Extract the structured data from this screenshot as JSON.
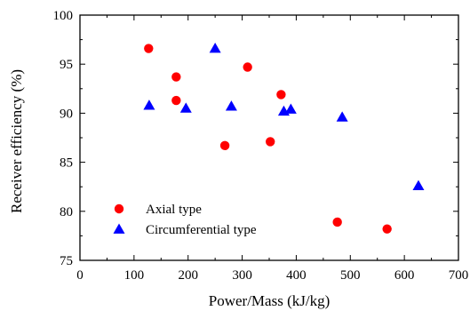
{
  "chart_data": {
    "type": "scatter",
    "title": "",
    "xlabel": "Power/Mass (kJ/kg)",
    "ylabel": "Receiver efficiency (%)",
    "xlim": [
      0,
      700
    ],
    "ylim": [
      75,
      100
    ],
    "xticks": [
      "0",
      "100",
      "200",
      "300",
      "400",
      "500",
      "600",
      "700"
    ],
    "yticks": [
      "75",
      "80",
      "85",
      "90",
      "95",
      "100"
    ],
    "grid": false,
    "legend_position": "bottom-left",
    "series": [
      {
        "name": "Axial type",
        "marker": "circle",
        "color": "#ff0000",
        "points": [
          {
            "x": 127,
            "y": 96.6
          },
          {
            "x": 178,
            "y": 93.7
          },
          {
            "x": 178,
            "y": 91.3
          },
          {
            "x": 268,
            "y": 86.7
          },
          {
            "x": 310,
            "y": 94.7
          },
          {
            "x": 352,
            "y": 87.1
          },
          {
            "x": 372,
            "y": 91.9
          },
          {
            "x": 476,
            "y": 78.9
          },
          {
            "x": 568,
            "y": 78.2
          }
        ]
      },
      {
        "name": "Circumferential type",
        "marker": "triangle",
        "color": "#0000ff",
        "points": [
          {
            "x": 128,
            "y": 90.8
          },
          {
            "x": 196,
            "y": 90.5
          },
          {
            "x": 250,
            "y": 96.6
          },
          {
            "x": 280,
            "y": 90.7
          },
          {
            "x": 377,
            "y": 90.2
          },
          {
            "x": 390,
            "y": 90.4
          },
          {
            "x": 485,
            "y": 89.6
          },
          {
            "x": 626,
            "y": 82.6
          }
        ]
      }
    ]
  }
}
